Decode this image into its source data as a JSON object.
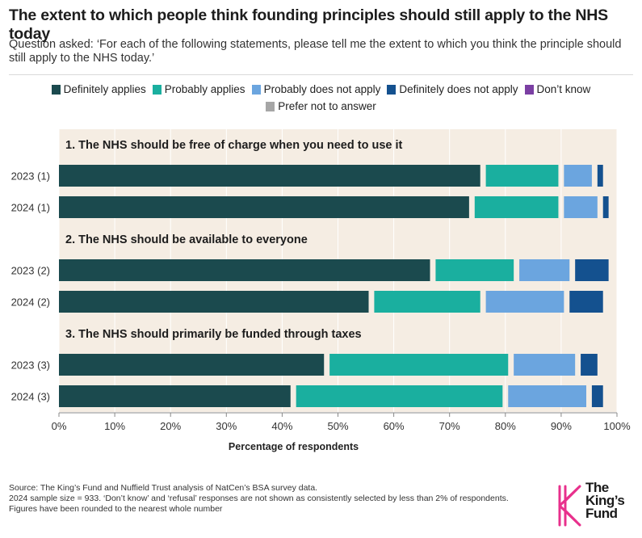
{
  "header": {
    "title": "The extent to which people think founding principles should still apply to the NHS today",
    "subtitle": "Question asked: ‘For each of the following statements, please tell me the extent to which you think the principle should still apply to the NHS today.’"
  },
  "colors": {
    "background_panel": "#f5ede3",
    "definitely_applies": "#1b4a4e",
    "probably_applies": "#1aaf9f",
    "probably_not": "#6ba5df",
    "definitely_not": "#14518f",
    "dont_know": "#7b3fa3",
    "prefer_not": "#a6a6a6",
    "logo_pink": "#e8308c"
  },
  "footer": {
    "source_line1": "Source: The King’s Fund and Nuffield Trust analysis of NatCen’s BSA survey data.",
    "source_line2": "2024 sample size = 933. ‘Don’t know’ and ‘refusal’ responses are not shown as consistently selected by less than 2% of respondents.",
    "source_line3": "Figures have been rounded to the nearest whole number"
  },
  "logo": {
    "line1": "The",
    "line2": "King’s",
    "line3": "Fund"
  },
  "chart_data": {
    "type": "bar",
    "orientation": "horizontal",
    "stacked": true,
    "xlabel": "Percentage of respondents",
    "xlim": [
      0,
      100
    ],
    "xticks": [
      "0%",
      "10%",
      "20%",
      "30%",
      "40%",
      "50%",
      "60%",
      "70%",
      "80%",
      "90%",
      "100%"
    ],
    "legend_position": "top-center",
    "series": [
      {
        "name": "Definitely applies",
        "color": "#1b4a4e"
      },
      {
        "name": "Probably applies",
        "color": "#1aaf9f"
      },
      {
        "name": "Probably does not apply",
        "color": "#6ba5df"
      },
      {
        "name": "Definitely does not apply",
        "color": "#14518f"
      },
      {
        "name": "Don’t know",
        "color": "#7b3fa3"
      },
      {
        "name": "Prefer not to answer",
        "color": "#a6a6a6"
      }
    ],
    "groups": [
      {
        "heading": "1. The NHS should be free of charge when you need to use it",
        "rows": [
          {
            "label": "2023 (1)",
            "values": [
              76,
              14,
              6,
              2,
              1,
              0
            ]
          },
          {
            "label": "2024 (1)",
            "values": [
              74,
              16,
              7,
              2,
              0,
              0
            ]
          }
        ]
      },
      {
        "heading": "2. The NHS should be available to everyone",
        "rows": [
          {
            "label": "2023 (2)",
            "values": [
              67,
              15,
              10,
              7,
              0,
              0
            ]
          },
          {
            "label": "2024 (2)",
            "values": [
              56,
              20,
              15,
              7,
              0,
              1
            ]
          }
        ]
      },
      {
        "heading": "3. The NHS should primarily be funded through taxes",
        "rows": [
          {
            "label": "2023 (3)",
            "values": [
              48,
              33,
              12,
              4,
              1,
              1
            ]
          },
          {
            "label": "2024 (3)",
            "values": [
              42,
              38,
              15,
              3,
              1,
              0
            ]
          }
        ]
      }
    ]
  }
}
